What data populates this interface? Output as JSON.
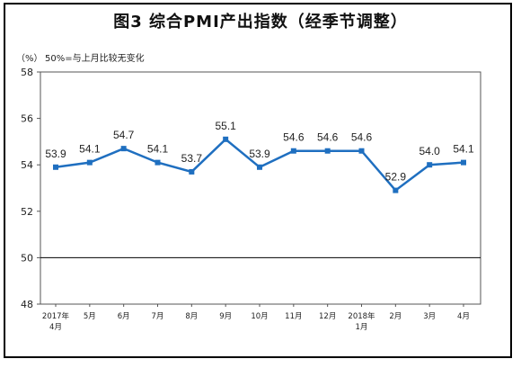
{
  "chart_data": {
    "type": "line",
    "title": "图3  综合PMI产出指数（经季节调整）",
    "unit_label": "（%）",
    "note": "50%=与上月比较无变化",
    "categories": [
      [
        "2017年",
        "4月"
      ],
      [
        "5月"
      ],
      [
        "6月"
      ],
      [
        "7月"
      ],
      [
        "8月"
      ],
      [
        "9月"
      ],
      [
        "10月"
      ],
      [
        "11月"
      ],
      [
        "12月"
      ],
      [
        "2018年",
        "1月"
      ],
      [
        "2月"
      ],
      [
        "3月"
      ],
      [
        "4月"
      ]
    ],
    "values": [
      53.9,
      54.1,
      54.7,
      54.1,
      53.7,
      55.1,
      53.9,
      54.6,
      54.6,
      54.6,
      52.9,
      54.0,
      54.1
    ],
    "data_labels": [
      "53.9",
      "54.1",
      "54.7",
      "54.1",
      "53.7",
      "55.1",
      "53.9",
      "54.6",
      "54.6",
      "54.6",
      "52.9",
      "54.0",
      "54.1"
    ],
    "ylim": [
      48,
      58
    ],
    "yticks": [
      48,
      50,
      52,
      54,
      56,
      58
    ],
    "reference_line": 50,
    "line_color": "#1f6fc0",
    "grid": false
  }
}
